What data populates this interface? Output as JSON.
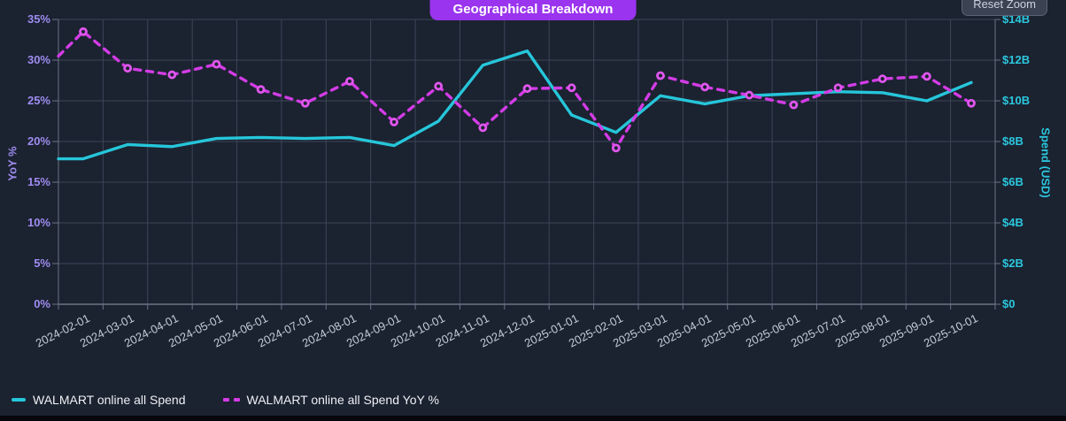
{
  "header": {
    "title": "Geographical Breakdown",
    "reset_zoom_label": "Reset Zoom"
  },
  "colors": {
    "background": "#1b2230",
    "gridline": "#3d4658",
    "axis_line": "#6b7486",
    "spend_line": "#26c6da",
    "yoy_line": "#d33ce6",
    "yoy_point": "#e156ee",
    "left_axis_text": "#9e8cf0",
    "right_axis_text": "#2bc7de",
    "x_axis_text": "#c4cbd8",
    "title_badge_bg": "#9a34ee",
    "title_badge_text": "#ffffff",
    "legend_text": "#eef0f4",
    "reset_button_bg": "#3b4252",
    "reset_button_border": "#5a6375",
    "reset_button_text": "#ccd2dd"
  },
  "chart_data": {
    "type": "line",
    "title": "Geographical Breakdown",
    "x": [
      "2024-02-01",
      "2024-03-01",
      "2024-04-01",
      "2024-05-01",
      "2024-06-01",
      "2024-07-01",
      "2024-08-01",
      "2024-09-01",
      "2024-10-01",
      "2024-11-01",
      "2024-12-01",
      "2025-01-01",
      "2025-02-01",
      "2025-03-01",
      "2025-04-01",
      "2025-05-01",
      "2025-06-01",
      "2025-07-01",
      "2025-08-01",
      "2025-09-01",
      "2025-10-01"
    ],
    "left_axis": {
      "label": "YoY %",
      "min": 0,
      "max": 35,
      "tick_step": 5,
      "tick_labels": [
        "0%",
        "5%",
        "10%",
        "15%",
        "20%",
        "25%",
        "30%",
        "35%"
      ]
    },
    "right_axis": {
      "label": "Spend (USD)",
      "min": 0,
      "max": 14,
      "unit": "billions USD",
      "tick_step": 2,
      "tick_labels": [
        "$0",
        "$2B",
        "$4B",
        "$6B",
        "$8B",
        "$10B",
        "$12B",
        "$14B"
      ]
    },
    "series": [
      {
        "name": "WALMART online all Spend",
        "axis": "right",
        "line_style": "solid",
        "point_markers": false,
        "color": "#26c6da",
        "values_usd_billions": [
          7.15,
          7.85,
          7.75,
          8.15,
          8.2,
          8.15,
          8.2,
          7.8,
          9.0,
          11.75,
          12.45,
          9.3,
          8.45,
          10.25,
          9.85,
          10.25,
          10.35,
          10.45,
          10.4,
          10.0,
          10.9
        ],
        "left_edge_entry_value": 7.15
      },
      {
        "name": "WALMART online all Spend YoY %",
        "axis": "left",
        "line_style": "dashed",
        "point_markers": true,
        "color": "#d33ce6",
        "values_pct": [
          33.5,
          29.0,
          28.2,
          29.5,
          26.4,
          24.7,
          27.4,
          22.4,
          26.8,
          21.7,
          26.5,
          26.6,
          19.2,
          28.1,
          26.7,
          25.7,
          24.5,
          26.6,
          27.7,
          28.0,
          24.7
        ],
        "left_edge_entry_value": 30.5
      }
    ],
    "grid": true,
    "legend_position": "bottom-left"
  }
}
